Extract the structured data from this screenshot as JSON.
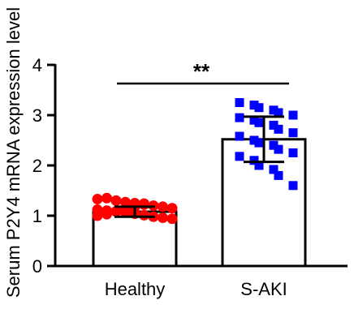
{
  "chart_data": {
    "type": "bar",
    "ylabel": "Serum P2Y4 mRNA expression level",
    "xlabel": "",
    "ylim": [
      0,
      4
    ],
    "yticks": [
      "0",
      "1",
      "2",
      "3",
      "4"
    ],
    "grid": false,
    "categories": [
      "Healthy",
      "S-AKI"
    ],
    "values": [
      1.08,
      2.52
    ],
    "errors": [
      0.1,
      0.45
    ],
    "significance": {
      "label": "**",
      "between": [
        "Healthy",
        "S-AKI"
      ]
    },
    "points": [
      {
        "category": "Healthy",
        "color": "#ff0000",
        "marker": "circle",
        "values": [
          1.33,
          1.35,
          1.3,
          1.27,
          1.25,
          1.22,
          1.2,
          1.18,
          1.15,
          1.12,
          1.1,
          1.08,
          1.06,
          1.04,
          1.01,
          0.98,
          0.96,
          0.94,
          1.0,
          1.03,
          1.09,
          1.13,
          1.17,
          1.24
        ]
      },
      {
        "category": "S-AKI",
        "color": "#0000ff",
        "marker": "square",
        "values": [
          3.25,
          3.2,
          3.15,
          3.1,
          3.05,
          3.0,
          2.95,
          2.9,
          2.85,
          2.8,
          2.72,
          2.65,
          2.58,
          2.5,
          2.45,
          2.4,
          2.32,
          2.25,
          2.18,
          2.1,
          2.0,
          1.92,
          1.8,
          1.6
        ]
      }
    ],
    "colors": {
      "healthy_points": "#ff0000",
      "saki_points": "#0000ff",
      "bar_fill": "#ffffff",
      "stroke": "#000000"
    }
  }
}
